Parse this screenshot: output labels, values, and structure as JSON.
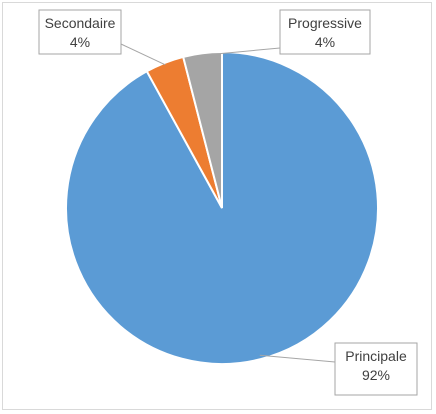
{
  "chart_data": {
    "type": "pie",
    "title": "",
    "start_angle_deg": 0,
    "direction": "clockwise",
    "series": [
      {
        "categories": [
          "Principale",
          "Secondaire",
          "Progressive"
        ],
        "values": [
          92,
          4,
          4
        ],
        "colors": [
          "#5b9bd5",
          "#ed7d31",
          "#a5a5a5"
        ]
      }
    ],
    "data_labels": [
      {
        "category": "Principale",
        "value_label": "92%"
      },
      {
        "category": "Secondaire",
        "value_label": "4%"
      },
      {
        "category": "Progressive",
        "value_label": "4%"
      }
    ],
    "legend": "none"
  }
}
